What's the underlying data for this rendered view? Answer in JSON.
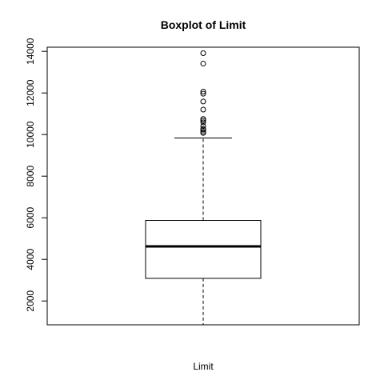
{
  "chart_data": {
    "type": "boxplot",
    "title": "Boxplot of Limit",
    "xlabel": "Limit",
    "ylabel": "",
    "ylim": [
      855,
      14200
    ],
    "y_ticks": [
      2000,
      4000,
      6000,
      8000,
      10000,
      12000,
      14000
    ],
    "y_tick_labels": [
      "2000",
      "4000",
      "6000",
      "8000",
      "10000",
      "12000",
      "14000"
    ],
    "box": {
      "whisker_low": 855,
      "q1": 3088,
      "median": 4622,
      "q3": 5873,
      "whisker_high": 9834
    },
    "outliers": [
      13913,
      13414,
      12066,
      11966,
      11589,
      11200,
      10748,
      10673,
      10588,
      10411,
      10279,
      10230,
      10140,
      10077
    ],
    "grid": false,
    "legend": "none"
  }
}
